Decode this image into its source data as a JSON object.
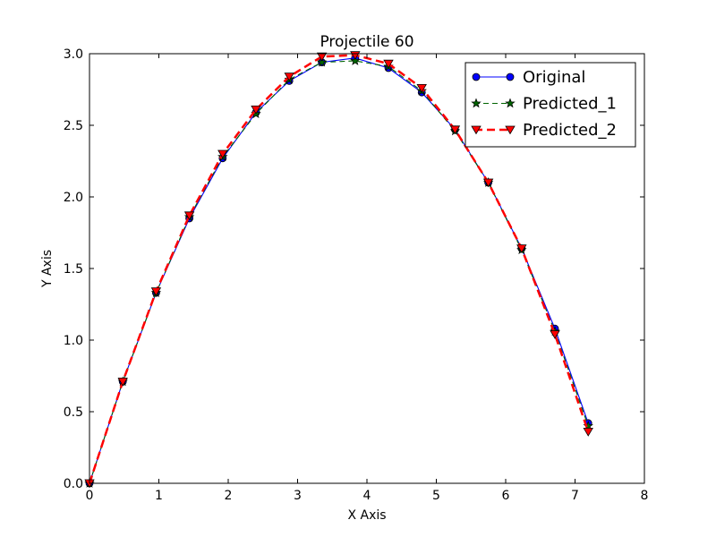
{
  "chart_data": {
    "type": "line",
    "title": "Projectile 60",
    "xlabel": "X Axis",
    "ylabel": "Y Axis",
    "xlim": [
      0,
      8
    ],
    "ylim": [
      0,
      3.0
    ],
    "x_ticks": [
      "0",
      "1",
      "2",
      "3",
      "4",
      "5",
      "6",
      "7",
      "8"
    ],
    "y_ticks": [
      "0.0",
      "0.5",
      "1.0",
      "1.5",
      "2.0",
      "2.5",
      "3.0"
    ],
    "grid": false,
    "legend_position": "top-right",
    "series": [
      {
        "name": "Original",
        "color": "#0000ff",
        "marker": "circle",
        "line_style": "solid",
        "x": [
          0.0,
          0.48,
          0.96,
          1.44,
          1.92,
          2.4,
          2.88,
          3.35,
          3.83,
          4.31,
          4.79,
          5.27,
          5.75,
          6.23,
          6.71,
          7.19
        ],
        "y": [
          0.0,
          0.71,
          1.33,
          1.85,
          2.27,
          2.59,
          2.81,
          2.94,
          2.97,
          2.9,
          2.73,
          2.47,
          2.1,
          1.64,
          1.08,
          0.42
        ]
      },
      {
        "name": "Predicted_1",
        "color": "#006400",
        "marker": "star",
        "line_style": "dashed",
        "x": [
          0.0,
          0.48,
          0.96,
          1.44,
          1.92,
          2.4,
          2.88,
          3.35,
          3.83,
          4.31,
          4.79,
          5.27,
          5.75,
          6.23,
          6.71,
          7.19
        ],
        "y": [
          0.0,
          0.71,
          1.33,
          1.86,
          2.28,
          2.58,
          2.82,
          2.94,
          2.95,
          2.91,
          2.74,
          2.46,
          2.1,
          1.63,
          1.06,
          0.4
        ]
      },
      {
        "name": "Predicted_2",
        "color": "#ff0000",
        "marker": "triangle-down",
        "line_style": "dashed",
        "x": [
          0.0,
          0.48,
          0.96,
          1.44,
          1.92,
          2.4,
          2.88,
          3.35,
          3.83,
          4.31,
          4.79,
          5.27,
          5.75,
          6.23,
          6.71,
          7.19
        ],
        "y": [
          0.0,
          0.71,
          1.34,
          1.87,
          2.3,
          2.61,
          2.84,
          2.98,
          2.99,
          2.93,
          2.76,
          2.47,
          2.1,
          1.64,
          1.04,
          0.36
        ]
      }
    ]
  }
}
